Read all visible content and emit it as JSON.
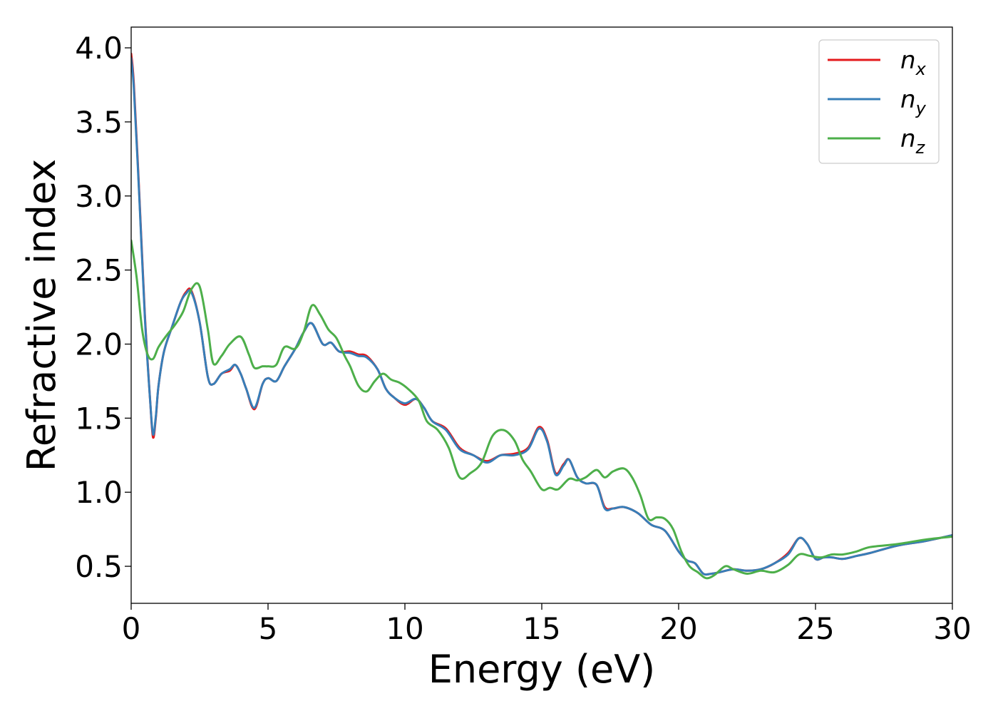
{
  "chart_data": {
    "type": "line",
    "title": "",
    "xlabel": "Energy (eV)",
    "ylabel": "Refractive index",
    "xlim": [
      0,
      30
    ],
    "ylim": [
      0.25,
      4.14
    ],
    "xticks": [
      0,
      5,
      10,
      15,
      20,
      25,
      30
    ],
    "yticks": [
      0.5,
      1.0,
      1.5,
      2.0,
      2.5,
      3.0,
      3.5,
      4.0
    ],
    "xtick_labels": [
      "0",
      "5",
      "10",
      "15",
      "20",
      "25",
      "30"
    ],
    "ytick_labels": [
      "0.5",
      "1.0",
      "1.5",
      "2.0",
      "2.5",
      "3.0",
      "3.5",
      "4.0"
    ],
    "grid": false,
    "legend_position": "top-right",
    "series": [
      {
        "name": "n_x",
        "legend_base": "n",
        "legend_sub": "x",
        "color": "#e41a1c",
        "x": [
          0,
          0.1,
          0.3,
          0.5,
          0.7,
          0.8,
          0.9,
          1.0,
          1.2,
          1.5,
          1.8,
          2.0,
          2.2,
          2.5,
          2.8,
          3.0,
          3.3,
          3.6,
          3.8,
          4.0,
          4.2,
          4.5,
          4.8,
          5.0,
          5.3,
          5.6,
          6.0,
          6.3,
          6.6,
          7.0,
          7.3,
          7.6,
          8.0,
          8.3,
          8.6,
          9.0,
          9.3,
          9.6,
          10.0,
          10.4,
          10.7,
          11.0,
          11.5,
          12.0,
          12.5,
          13.0,
          13.5,
          14.0,
          14.5,
          14.9,
          15.2,
          15.5,
          15.8,
          16.0,
          16.3,
          16.6,
          17.0,
          17.3,
          17.6,
          18.0,
          18.5,
          19.0,
          19.5,
          20.0,
          20.3,
          20.6,
          20.9,
          21.2,
          21.5,
          22.0,
          22.5,
          23.0,
          23.5,
          24.0,
          24.4,
          24.7,
          25.0,
          25.3,
          25.6,
          26.0,
          26.5,
          27.0,
          28.0,
          29.0,
          30.0
        ],
        "y": [
          3.96,
          3.75,
          3.0,
          2.2,
          1.6,
          1.37,
          1.5,
          1.72,
          1.95,
          2.12,
          2.28,
          2.35,
          2.36,
          2.15,
          1.78,
          1.73,
          1.8,
          1.82,
          1.86,
          1.8,
          1.7,
          1.56,
          1.73,
          1.77,
          1.75,
          1.85,
          1.97,
          2.08,
          2.14,
          2.0,
          2.01,
          1.95,
          1.95,
          1.93,
          1.92,
          1.83,
          1.7,
          1.64,
          1.59,
          1.63,
          1.57,
          1.48,
          1.43,
          1.3,
          1.25,
          1.21,
          1.25,
          1.26,
          1.3,
          1.44,
          1.35,
          1.13,
          1.19,
          1.22,
          1.1,
          1.06,
          1.05,
          0.9,
          0.89,
          0.9,
          0.86,
          0.78,
          0.74,
          0.6,
          0.54,
          0.52,
          0.45,
          0.45,
          0.46,
          0.48,
          0.47,
          0.48,
          0.52,
          0.59,
          0.69,
          0.65,
          0.55,
          0.56,
          0.56,
          0.55,
          0.57,
          0.59,
          0.64,
          0.67,
          0.71
        ]
      },
      {
        "name": "n_y",
        "legend_base": "n",
        "legend_sub": "y",
        "color": "#377eb8",
        "x": [
          0,
          0.1,
          0.3,
          0.5,
          0.7,
          0.8,
          0.9,
          1.0,
          1.2,
          1.5,
          1.8,
          2.0,
          2.2,
          2.5,
          2.8,
          3.0,
          3.3,
          3.6,
          3.8,
          4.0,
          4.2,
          4.5,
          4.8,
          5.0,
          5.3,
          5.6,
          6.0,
          6.3,
          6.6,
          7.0,
          7.3,
          7.6,
          8.0,
          8.3,
          8.6,
          9.0,
          9.3,
          9.6,
          10.0,
          10.4,
          10.7,
          11.0,
          11.5,
          12.0,
          12.5,
          13.0,
          13.5,
          14.0,
          14.5,
          14.9,
          15.2,
          15.5,
          15.8,
          16.0,
          16.3,
          16.6,
          17.0,
          17.3,
          17.6,
          18.0,
          18.5,
          19.0,
          19.5,
          20.0,
          20.3,
          20.6,
          20.9,
          21.2,
          21.5,
          22.0,
          22.5,
          23.0,
          23.5,
          24.0,
          24.4,
          24.7,
          25.0,
          25.3,
          25.6,
          26.0,
          26.5,
          27.0,
          28.0,
          29.0,
          30.0
        ],
        "y": [
          3.93,
          3.72,
          2.98,
          2.18,
          1.6,
          1.39,
          1.51,
          1.72,
          1.95,
          2.12,
          2.28,
          2.34,
          2.35,
          2.15,
          1.78,
          1.73,
          1.8,
          1.83,
          1.86,
          1.8,
          1.7,
          1.57,
          1.73,
          1.77,
          1.75,
          1.85,
          1.97,
          2.08,
          2.14,
          2.0,
          2.01,
          1.95,
          1.94,
          1.92,
          1.91,
          1.83,
          1.7,
          1.64,
          1.6,
          1.63,
          1.57,
          1.48,
          1.42,
          1.29,
          1.25,
          1.2,
          1.25,
          1.25,
          1.29,
          1.43,
          1.34,
          1.12,
          1.18,
          1.22,
          1.1,
          1.06,
          1.05,
          0.89,
          0.89,
          0.9,
          0.86,
          0.78,
          0.74,
          0.6,
          0.54,
          0.52,
          0.45,
          0.45,
          0.46,
          0.48,
          0.47,
          0.48,
          0.52,
          0.58,
          0.69,
          0.65,
          0.55,
          0.56,
          0.56,
          0.55,
          0.57,
          0.59,
          0.64,
          0.67,
          0.71
        ]
      },
      {
        "name": "n_z",
        "legend_base": "n",
        "legend_sub": "z",
        "color": "#4daf4a",
        "x": [
          0,
          0.2,
          0.4,
          0.6,
          0.8,
          1.0,
          1.3,
          1.6,
          1.9,
          2.2,
          2.5,
          2.8,
          3.0,
          3.3,
          3.6,
          4.0,
          4.3,
          4.5,
          4.8,
          5.0,
          5.3,
          5.6,
          6.0,
          6.3,
          6.6,
          6.9,
          7.2,
          7.5,
          7.8,
          8.0,
          8.3,
          8.6,
          8.9,
          9.2,
          9.5,
          9.8,
          10.1,
          10.5,
          10.8,
          11.2,
          11.6,
          12.0,
          12.4,
          12.8,
          13.2,
          13.6,
          14.0,
          14.3,
          14.6,
          15.0,
          15.3,
          15.6,
          16.0,
          16.3,
          16.6,
          17.0,
          17.3,
          17.6,
          18.0,
          18.3,
          18.6,
          18.9,
          19.2,
          19.5,
          19.8,
          20.1,
          20.4,
          20.7,
          21.0,
          21.3,
          21.7,
          22.0,
          22.5,
          23.0,
          23.5,
          24.0,
          24.4,
          24.8,
          25.2,
          25.6,
          26.0,
          26.5,
          27.0,
          28.0,
          29.0,
          30.0
        ],
        "y": [
          2.7,
          2.45,
          2.1,
          1.93,
          1.9,
          1.98,
          2.06,
          2.13,
          2.22,
          2.37,
          2.39,
          2.1,
          1.87,
          1.92,
          2.0,
          2.05,
          1.93,
          1.84,
          1.85,
          1.85,
          1.86,
          1.98,
          1.97,
          2.08,
          2.26,
          2.2,
          2.1,
          2.04,
          1.92,
          1.85,
          1.72,
          1.68,
          1.75,
          1.8,
          1.76,
          1.74,
          1.7,
          1.62,
          1.48,
          1.42,
          1.3,
          1.1,
          1.13,
          1.2,
          1.38,
          1.42,
          1.35,
          1.22,
          1.14,
          1.02,
          1.03,
          1.02,
          1.09,
          1.08,
          1.1,
          1.15,
          1.1,
          1.14,
          1.16,
          1.1,
          0.98,
          0.82,
          0.83,
          0.82,
          0.75,
          0.6,
          0.5,
          0.46,
          0.42,
          0.44,
          0.5,
          0.48,
          0.45,
          0.47,
          0.46,
          0.51,
          0.58,
          0.57,
          0.56,
          0.58,
          0.58,
          0.6,
          0.63,
          0.65,
          0.68,
          0.7
        ]
      }
    ]
  }
}
